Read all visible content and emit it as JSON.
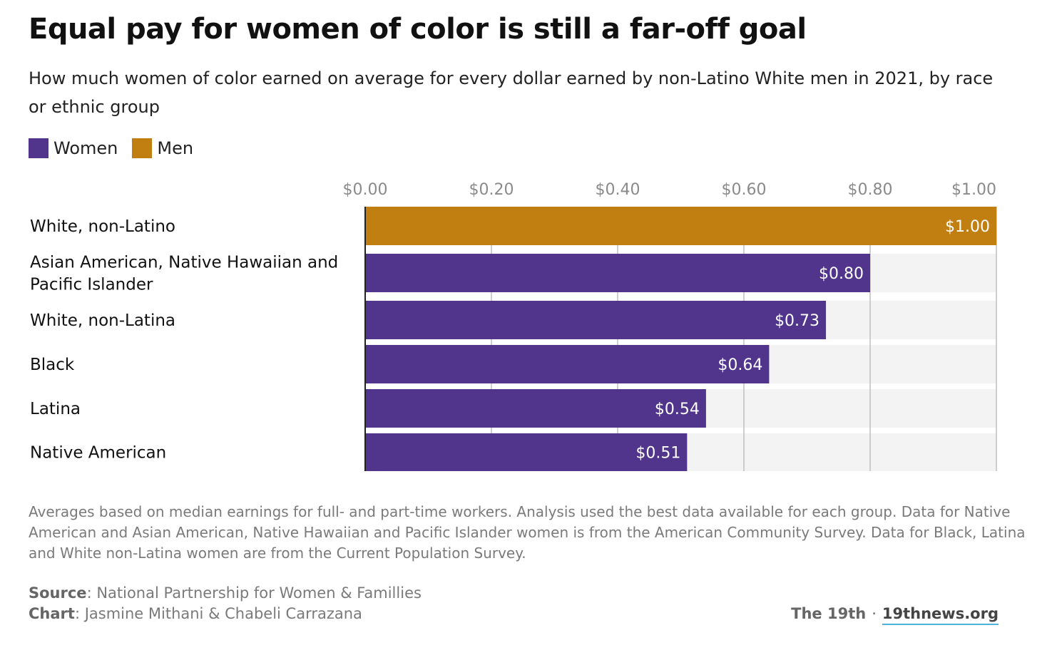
{
  "title": "Equal pay for women of color is still a far-off goal",
  "subtitle": "How much women of color earned on average for every dollar earned by non-Latino White men in 2021, by race or ethnic group",
  "legend": [
    {
      "label": "Women",
      "color": "#51358c"
    },
    {
      "label": "Men",
      "color": "#c17f12"
    }
  ],
  "chart_data": {
    "type": "bar",
    "orientation": "horizontal",
    "categories": [
      "White, non-Latino",
      "Asian American, Native Hawaiian and Pacific Islander",
      "White, non-Latina",
      "Black",
      "Latina",
      "Native American"
    ],
    "values": [
      1.0,
      0.8,
      0.73,
      0.64,
      0.54,
      0.51
    ],
    "value_labels": [
      "$1.00",
      "$0.80",
      "$0.73",
      "$0.64",
      "$0.54",
      "$0.51"
    ],
    "groups": [
      "Men",
      "Women",
      "Women",
      "Women",
      "Women",
      "Women"
    ],
    "x_ticks": [
      0,
      0.2,
      0.4,
      0.6,
      0.8,
      1.0
    ],
    "x_tick_labels": [
      "$0.00",
      "$0.20",
      "$0.40",
      "$0.60",
      "$0.80",
      "$1.00"
    ],
    "xlim": [
      0,
      1.0
    ],
    "grid": true,
    "axis_position": "top",
    "legend_position": "top-left",
    "track_color": "#f3f3f3",
    "grid_color": "#bfbfbf"
  },
  "notes": "Averages based on median earnings for full- and part-time workers. Analysis used the best data available for each group. Data for Native American and Asian American, Native Hawaiian and Pacific Islander women is from the American Community Survey. Data for Black, Latina and White non-Latina women are from the Current Population Survey.",
  "source": {
    "label": "Source",
    "text": ": National Partnership for Women & Famillies"
  },
  "chart_credit": {
    "label": "Chart",
    "text": ": Jasmine Mithani & Chabeli Carrazana"
  },
  "brand": {
    "name": "The 19th",
    "separator": "·",
    "site": "19thnews.org"
  }
}
